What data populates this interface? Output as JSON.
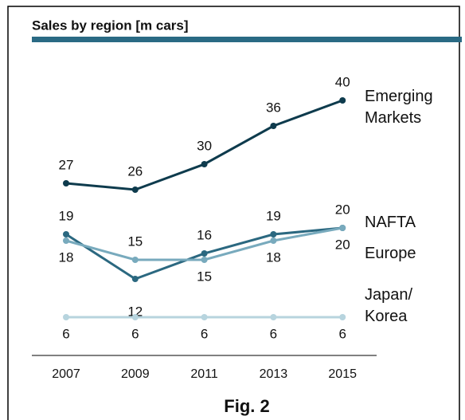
{
  "chart_data": {
    "type": "line",
    "title": "Sales by region [m cars]",
    "caption": "Fig. 2",
    "categories": [
      "2007",
      "2009",
      "2011",
      "2013",
      "2015"
    ],
    "series": [
      {
        "name": "Emerging Markets",
        "color": "#0e3b4d",
        "values": [
          27,
          26,
          30,
          36,
          40
        ]
      },
      {
        "name": "NAFTA",
        "color": "#2b6880",
        "values": [
          19,
          12,
          16,
          19,
          20
        ]
      },
      {
        "name": "Europe",
        "color": "#78aabd",
        "values": [
          18,
          15,
          15,
          18,
          20
        ]
      },
      {
        "name": "Japan/ Korea",
        "color": "#b7d4de",
        "values": [
          6,
          6,
          6,
          6,
          6
        ]
      }
    ]
  }
}
